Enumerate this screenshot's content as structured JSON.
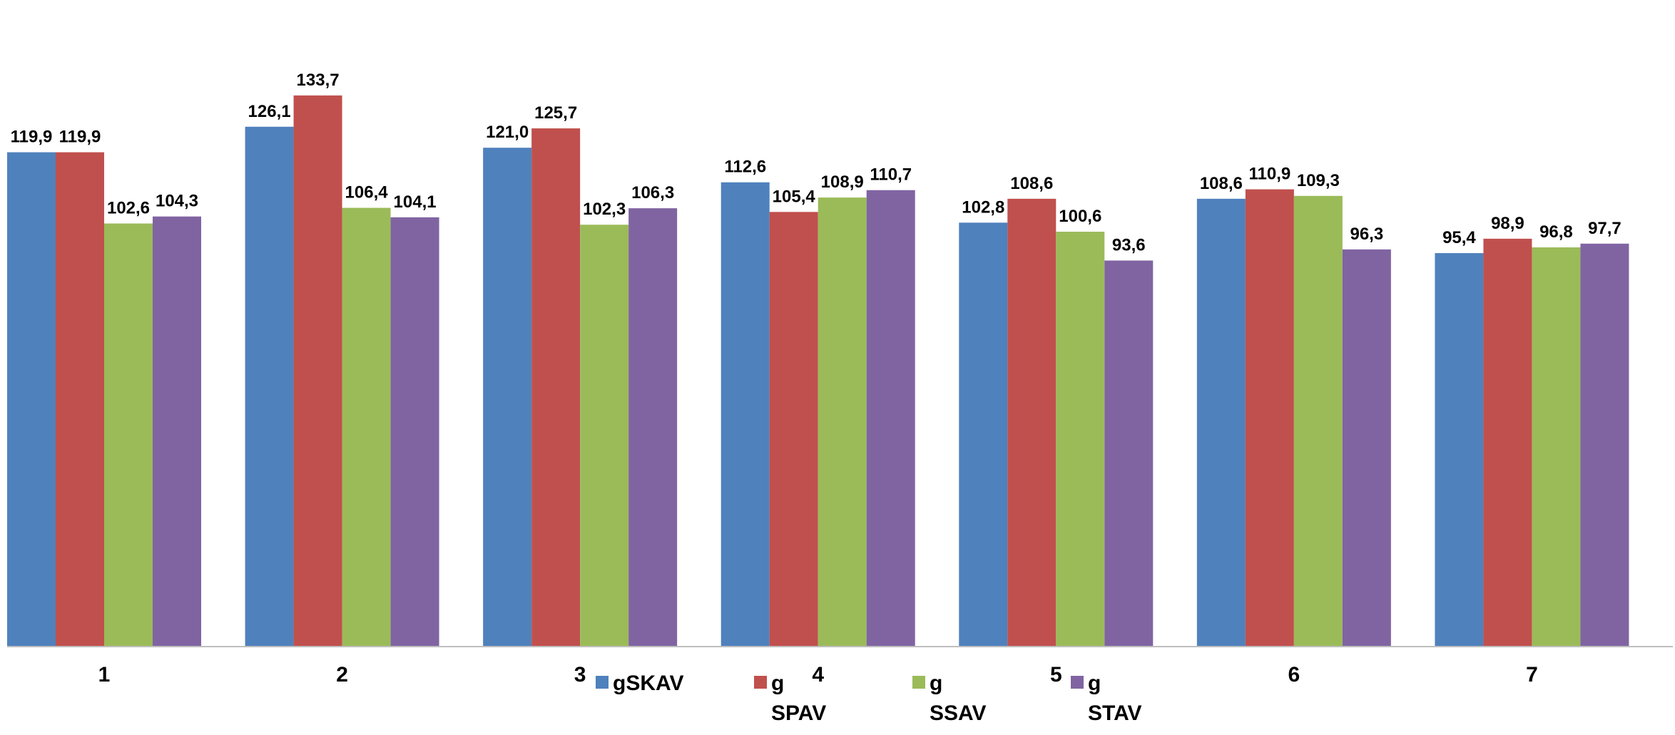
{
  "chart_data": {
    "type": "bar",
    "title": "",
    "xlabel": "",
    "ylabel": "",
    "ylim": [
      0,
      140
    ],
    "grid": false,
    "legend_position": "bottom",
    "categories": [
      "1",
      "2",
      "3",
      "4",
      "5",
      "6",
      "7"
    ],
    "series": [
      {
        "name": "gSKAV",
        "legend_lines": [
          "gSKAV"
        ],
        "color": "#4F81BD",
        "values": [
          119.9,
          126.1,
          121.0,
          112.6,
          102.8,
          108.6,
          95.4
        ],
        "labels": [
          "119,9",
          "126,1",
          "121,0",
          "112,6",
          "102,8",
          "108,6",
          "95,4"
        ]
      },
      {
        "name": "gSPAV",
        "legend_lines": [
          "g",
          "SPAV"
        ],
        "color": "#C0504D",
        "values": [
          119.9,
          133.7,
          125.7,
          105.4,
          108.6,
          110.9,
          98.9
        ],
        "labels": [
          "119,9",
          "133,7",
          "125,7",
          "105,4",
          "108,6",
          "110,9",
          "98,9"
        ]
      },
      {
        "name": "gSSAV",
        "legend_lines": [
          "g",
          "SSAV"
        ],
        "color": "#9BBB59",
        "values": [
          102.6,
          106.4,
          102.3,
          108.9,
          100.6,
          109.3,
          96.8
        ],
        "labels": [
          "102,6",
          "106,4",
          "102,3",
          "108,9",
          "100,6",
          "109,3",
          "96,8"
        ]
      },
      {
        "name": "gSTAV",
        "legend_lines": [
          "g",
          "STAV"
        ],
        "color": "#8064A2",
        "values": [
          104.3,
          104.1,
          106.3,
          110.7,
          93.6,
          96.3,
          97.7
        ],
        "labels": [
          "104,3",
          "104,1",
          "106,3",
          "110,7",
          "93,6",
          "96,3",
          "97,7"
        ]
      }
    ]
  }
}
